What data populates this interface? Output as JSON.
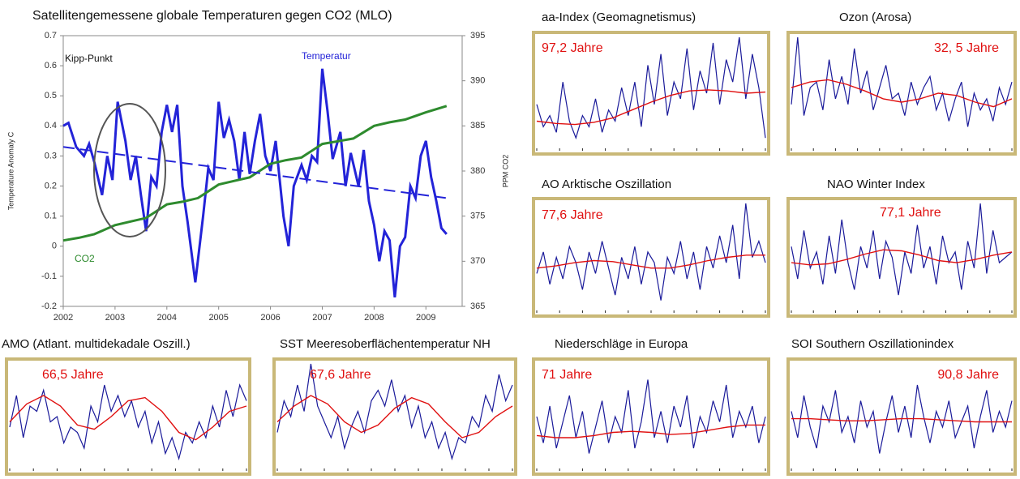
{
  "chart_data": [
    {
      "type": "line",
      "title": "Satellitengemessene globale Temperaturen gegen CO2 (MLO)",
      "y_label": "Temperature Anomaly C",
      "y2_label": "PPM CO2",
      "annotations": [
        "Kipp-Punkt",
        "Temperatur",
        "CO2"
      ],
      "xlim": [
        2002,
        2009.7
      ],
      "xticks": [
        2002,
        2003,
        2004,
        2005,
        2006,
        2007,
        2008,
        2009
      ],
      "ylim": [
        -0.2,
        0.7
      ],
      "yticks": [
        0.7,
        0.6,
        0.5,
        0.4,
        0.3,
        0.2,
        0.1,
        0,
        -0.1,
        -0.2
      ],
      "y2lim": [
        365,
        395
      ],
      "y2ticks": [
        395,
        390,
        385,
        380,
        375,
        370,
        365
      ],
      "grid": false,
      "series": [
        {
          "name": "Temperatur",
          "color": "#2323d8",
          "x": [
            2002.0,
            2002.1,
            2002.25,
            2002.4,
            2002.5,
            2002.6,
            2002.75,
            2002.85,
            2002.95,
            2003.05,
            2003.2,
            2003.3,
            2003.4,
            2003.5,
            2003.6,
            2003.7,
            2003.8,
            2003.9,
            2004.0,
            2004.1,
            2004.2,
            2004.3,
            2004.4,
            2004.55,
            2004.7,
            2004.8,
            2004.9,
            2005.0,
            2005.1,
            2005.2,
            2005.3,
            2005.4,
            2005.5,
            2005.6,
            2005.7,
            2005.8,
            2005.9,
            2006.0,
            2006.1,
            2006.25,
            2006.35,
            2006.45,
            2006.6,
            2006.7,
            2006.8,
            2006.9,
            2007.0,
            2007.1,
            2007.2,
            2007.35,
            2007.45,
            2007.55,
            2007.7,
            2007.8,
            2007.9,
            2008.0,
            2008.1,
            2008.2,
            2008.3,
            2008.4,
            2008.5,
            2008.6,
            2008.7,
            2008.8,
            2008.9,
            2009.0,
            2009.1,
            2009.2,
            2009.3,
            2009.4
          ],
          "values": [
            0.4,
            0.41,
            0.33,
            0.3,
            0.34,
            0.28,
            0.17,
            0.3,
            0.22,
            0.48,
            0.35,
            0.22,
            0.3,
            0.17,
            0.05,
            0.23,
            0.2,
            0.38,
            0.47,
            0.38,
            0.47,
            0.2,
            0.08,
            -0.12,
            0.1,
            0.26,
            0.22,
            0.48,
            0.36,
            0.42,
            0.35,
            0.22,
            0.38,
            0.24,
            0.35,
            0.44,
            0.3,
            0.25,
            0.35,
            0.1,
            0.0,
            0.2,
            0.27,
            0.22,
            0.3,
            0.28,
            0.59,
            0.45,
            0.29,
            0.38,
            0.2,
            0.31,
            0.2,
            0.32,
            0.15,
            0.07,
            -0.05,
            0.05,
            0.02,
            -0.17,
            0.0,
            0.03,
            0.2,
            0.16,
            0.3,
            0.35,
            0.23,
            0.15,
            0.06,
            0.04
          ]
        },
        {
          "name": "CO2",
          "color": "#2e8b2e",
          "axis": "y2",
          "x": [
            2002.0,
            2002.3,
            2002.6,
            2003.0,
            2003.3,
            2003.6,
            2004.0,
            2004.3,
            2004.6,
            2005.0,
            2005.3,
            2005.6,
            2006.0,
            2006.3,
            2006.6,
            2007.0,
            2007.3,
            2007.6,
            2008.0,
            2008.3,
            2008.6,
            2009.0,
            2009.4
          ],
          "values": [
            372.3,
            372.6,
            373.0,
            374.0,
            374.4,
            374.8,
            376.3,
            376.6,
            377.0,
            378.5,
            378.9,
            379.3,
            380.8,
            381.2,
            381.5,
            383.0,
            383.3,
            383.6,
            385.0,
            385.4,
            385.7,
            386.5,
            387.2
          ]
        },
        {
          "color": "#2323d8",
          "style": "dashed",
          "x": [
            2002.0,
            2009.4
          ],
          "values": [
            0.33,
            0.16
          ]
        }
      ]
    },
    {
      "type": "line",
      "title": "aa-Index  (Geomagnetismus)",
      "annotation": "97,2 Jahre",
      "ylim": [
        0,
        100
      ],
      "series": [
        {
          "color": "#1a1a9a",
          "values": [
            40,
            20,
            30,
            15,
            60,
            25,
            10,
            30,
            20,
            45,
            15,
            35,
            25,
            55,
            30,
            60,
            20,
            75,
            40,
            85,
            30,
            60,
            45,
            90,
            35,
            70,
            50,
            95,
            40,
            80,
            60,
            100,
            45,
            85,
            55,
            10
          ]
        },
        {
          "color": "#e01010",
          "values": [
            25,
            23,
            22,
            24,
            28,
            35,
            42,
            48,
            52,
            53,
            52,
            50,
            51
          ]
        }
      ]
    },
    {
      "type": "line",
      "title": "Ozon (Arosa)",
      "annotation": "32, 5 Jahre",
      "ylim": [
        0,
        100
      ],
      "series": [
        {
          "color": "#1a1a9a",
          "values": [
            40,
            100,
            30,
            55,
            60,
            35,
            80,
            45,
            65,
            40,
            90,
            50,
            70,
            35,
            55,
            75,
            45,
            50,
            30,
            60,
            40,
            55,
            65,
            35,
            50,
            25,
            45,
            60,
            20,
            50,
            35,
            45,
            25,
            55,
            40,
            60
          ]
        },
        {
          "color": "#e01010",
          "values": [
            55,
            60,
            62,
            58,
            52,
            45,
            42,
            45,
            50,
            48,
            42,
            38,
            45
          ]
        }
      ]
    },
    {
      "type": "line",
      "title": "AO Arktische Oszillation",
      "annotation": "77,6 Jahre",
      "ylim": [
        0,
        100
      ],
      "series": [
        {
          "color": "#1a1a9a",
          "values": [
            35,
            55,
            25,
            50,
            30,
            60,
            45,
            20,
            55,
            35,
            65,
            40,
            15,
            50,
            30,
            60,
            25,
            55,
            45,
            10,
            50,
            35,
            65,
            30,
            55,
            20,
            60,
            40,
            70,
            45,
            80,
            30,
            100,
            50,
            65,
            45
          ]
        },
        {
          "color": "#e01010",
          "values": [
            40,
            42,
            45,
            47,
            46,
            43,
            40,
            40,
            43,
            47,
            50,
            52,
            52
          ]
        }
      ]
    },
    {
      "type": "line",
      "title": "NAO Winter Index",
      "annotation": "77,1 Jahre",
      "ylim": [
        0,
        100
      ],
      "series": [
        {
          "color": "#1a1a9a",
          "values": [
            60,
            30,
            75,
            40,
            55,
            25,
            70,
            35,
            85,
            45,
            20,
            60,
            40,
            75,
            30,
            65,
            50,
            15,
            55,
            35,
            80,
            40,
            60,
            25,
            70,
            45,
            55,
            20,
            65,
            40,
            100,
            35,
            75,
            45,
            50,
            55
          ]
        },
        {
          "color": "#e01010",
          "values": [
            45,
            43,
            44,
            48,
            53,
            57,
            56,
            52,
            47,
            45,
            48,
            52,
            55
          ]
        }
      ]
    },
    {
      "type": "line",
      "title": "AMO (Atlant. multidekadale Oszill.)",
      "annotation": "66,5 Jahre",
      "ylim": [
        0,
        100
      ],
      "series": [
        {
          "color": "#1a1a9a",
          "values": [
            40,
            70,
            30,
            60,
            55,
            75,
            45,
            50,
            25,
            40,
            35,
            20,
            60,
            45,
            80,
            55,
            70,
            50,
            65,
            40,
            55,
            25,
            45,
            15,
            30,
            10,
            35,
            25,
            45,
            30,
            60,
            40,
            75,
            50,
            80,
            65
          ]
        },
        {
          "color": "#e01010",
          "values": [
            45,
            62,
            70,
            60,
            42,
            38,
            50,
            65,
            68,
            55,
            35,
            28,
            40,
            55,
            60
          ]
        }
      ]
    },
    {
      "type": "line",
      "title": "SST Meeresoberflächentemperatur NH",
      "annotation": "67,6 Jahre",
      "ylim": [
        0,
        100
      ],
      "series": [
        {
          "color": "#1a1a9a",
          "values": [
            35,
            65,
            50,
            80,
            55,
            100,
            60,
            45,
            30,
            50,
            20,
            40,
            55,
            35,
            65,
            75,
            60,
            85,
            55,
            70,
            40,
            60,
            30,
            45,
            20,
            35,
            10,
            30,
            25,
            50,
            40,
            70,
            55,
            90,
            65,
            80
          ]
        },
        {
          "color": "#e01010",
          "values": [
            45,
            60,
            70,
            62,
            45,
            35,
            42,
            58,
            68,
            62,
            45,
            30,
            35,
            50,
            60
          ]
        }
      ]
    },
    {
      "type": "line",
      "title": "Niederschläge in Europa",
      "annotation": "71 Jahre",
      "ylim": [
        0,
        100
      ],
      "series": [
        {
          "color": "#1a1a9a",
          "values": [
            50,
            25,
            60,
            20,
            45,
            70,
            30,
            55,
            15,
            40,
            65,
            25,
            50,
            35,
            75,
            20,
            45,
            85,
            30,
            55,
            25,
            60,
            40,
            70,
            20,
            50,
            35,
            65,
            45,
            80,
            30,
            55,
            40,
            60,
            25,
            50
          ]
        },
        {
          "color": "#e01010",
          "values": [
            32,
            30,
            30,
            32,
            35,
            36,
            35,
            33,
            34,
            37,
            40,
            42,
            42
          ]
        }
      ]
    },
    {
      "type": "line",
      "title": "SOI Southern Oszillationindex",
      "annotation": "90,8 Jahre",
      "ylim": [
        0,
        100
      ],
      "series": [
        {
          "color": "#1a1a9a",
          "values": [
            55,
            30,
            70,
            40,
            20,
            60,
            45,
            75,
            35,
            50,
            25,
            65,
            40,
            55,
            15,
            45,
            70,
            35,
            60,
            30,
            80,
            50,
            25,
            55,
            40,
            65,
            30,
            45,
            60,
            20,
            50,
            75,
            35,
            55,
            40,
            65
          ]
        },
        {
          "color": "#e01010",
          "values": [
            48,
            48,
            47,
            46,
            46,
            47,
            48,
            48,
            47,
            46,
            45,
            45,
            45
          ]
        }
      ]
    }
  ]
}
